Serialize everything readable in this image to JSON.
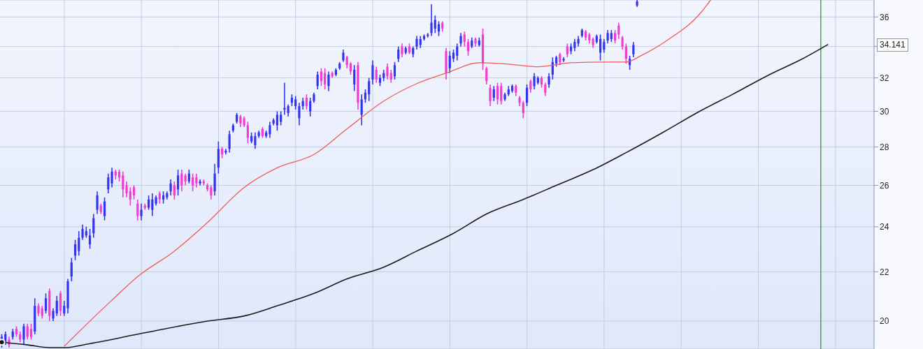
{
  "chart_data": {
    "type": "candlestick",
    "categories": [
      null,
      null,
      null,
      null,
      null,
      null,
      null,
      null,
      null,
      null,
      null,
      null,
      null,
      null,
      null,
      null,
      null,
      null,
      null,
      null,
      null,
      null,
      null,
      null,
      null,
      null,
      null,
      null,
      null,
      null,
      null,
      null,
      null,
      null,
      null,
      null,
      null,
      null,
      null,
      null,
      null,
      null,
      null,
      null,
      null,
      null,
      null,
      null,
      null,
      null,
      null,
      null,
      null,
      null,
      null,
      null,
      null,
      null,
      null,
      null,
      null,
      null,
      null,
      null,
      null,
      null,
      null,
      null,
      null,
      null,
      null,
      null,
      null,
      null,
      null,
      null,
      null,
      null,
      null,
      null,
      null,
      null,
      null,
      null,
      null,
      null,
      null,
      null,
      null,
      null,
      null,
      null,
      null,
      null,
      null,
      null,
      null,
      null,
      null,
      null,
      null,
      null,
      null,
      null,
      null,
      null,
      null,
      null,
      null,
      null,
      null,
      null,
      null,
      null,
      null,
      null,
      null,
      null,
      null,
      null,
      null,
      null,
      null,
      null,
      null,
      null,
      null,
      null,
      null,
      null,
      null,
      null,
      null,
      null,
      null,
      null,
      null,
      null,
      null,
      null,
      null,
      null,
      null,
      null,
      null,
      null,
      null,
      null,
      null,
      null,
      null,
      null,
      null,
      null,
      null,
      null,
      null,
      null,
      null,
      null,
      null,
      null,
      null,
      null,
      null,
      null,
      null,
      null,
      null,
      null,
      null,
      null,
      null,
      null,
      null,
      null,
      null,
      null,
      null,
      null,
      null,
      null,
      null,
      null,
      null,
      null,
      null,
      null,
      null,
      null,
      null,
      null,
      null,
      null,
      null,
      null,
      null,
      null,
      null,
      null,
      null,
      null,
      null,
      null,
      null,
      null,
      null,
      null,
      null,
      null,
      null,
      null,
      null,
      null,
      null,
      null,
      null,
      null,
      null,
      null,
      null,
      null,
      null,
      null,
      null,
      null,
      null,
      null,
      null,
      null,
      null,
      null,
      null,
      null,
      null,
      null,
      null,
      null
    ],
    "series": [
      {
        "ohlc": [
          [
            19.1,
            19.5,
            19.0,
            19.4
          ],
          [
            19.2,
            19.6,
            19.1,
            19.5
          ],
          [
            19.3,
            19.4,
            19.0,
            19.1
          ],
          [
            19.4,
            19.7,
            19.3,
            19.6
          ],
          [
            19.7,
            19.8,
            19.4,
            19.5
          ],
          [
            19.5,
            19.6,
            19.2,
            19.3
          ],
          [
            19.3,
            19.9,
            19.1,
            19.8
          ],
          [
            19.8,
            19.9,
            19.3,
            19.4
          ],
          [
            19.7,
            19.9,
            19.3,
            19.4
          ],
          [
            19.6,
            20.9,
            19.5,
            20.6
          ],
          [
            20.6,
            20.7,
            20.2,
            20.3
          ],
          [
            20.5,
            20.6,
            20.1,
            20.2
          ],
          [
            20.4,
            21.1,
            20.3,
            20.9
          ],
          [
            21.2,
            21.3,
            20.0,
            20.2
          ],
          [
            20.1,
            20.5,
            20.0,
            20.4
          ],
          [
            20.3,
            21.0,
            20.2,
            20.8
          ],
          [
            21.1,
            21.2,
            20.2,
            20.4
          ],
          [
            20.3,
            20.8,
            20.2,
            20.6
          ],
          [
            20.5,
            21.7,
            20.3,
            21.6
          ],
          [
            21.8,
            22.6,
            21.6,
            22.4
          ],
          [
            22.7,
            23.4,
            22.5,
            23.2
          ],
          [
            22.9,
            23.8,
            22.7,
            23.5
          ],
          [
            23.5,
            24.1,
            23.4,
            23.9
          ],
          [
            23.6,
            24.0,
            23.5,
            23.8
          ],
          [
            23.2,
            23.9,
            23.0,
            23.6
          ],
          [
            23.7,
            24.6,
            23.5,
            24.4
          ],
          [
            24.8,
            25.7,
            24.6,
            25.5
          ],
          [
            25.0,
            25.1,
            24.6,
            24.7
          ],
          [
            24.5,
            25.4,
            24.3,
            25.2
          ],
          [
            25.8,
            26.6,
            25.6,
            26.4
          ],
          [
            26.1,
            26.9,
            25.9,
            26.7
          ],
          [
            26.7,
            26.8,
            26.3,
            26.5
          ],
          [
            26.7,
            26.8,
            26.2,
            26.4
          ],
          [
            26.5,
            26.7,
            25.4,
            25.8
          ],
          [
            26.0,
            26.2,
            25.4,
            25.6
          ],
          [
            25.7,
            25.9,
            25.0,
            25.3
          ],
          [
            25.9,
            26.0,
            25.3,
            25.5
          ],
          [
            25.1,
            25.3,
            24.3,
            24.5
          ],
          [
            24.5,
            25.1,
            24.3,
            24.8
          ],
          [
            25.0,
            25.1,
            24.8,
            24.9
          ],
          [
            24.9,
            25.5,
            24.8,
            25.3
          ],
          [
            24.8,
            25.6,
            24.5,
            25.3
          ],
          [
            25.1,
            25.5,
            25.0,
            25.4
          ],
          [
            25.6,
            25.7,
            25.1,
            25.3
          ],
          [
            25.3,
            25.7,
            25.1,
            25.5
          ],
          [
            25.4,
            25.7,
            25.3,
            25.6
          ],
          [
            25.7,
            26.3,
            25.5,
            26.1
          ],
          [
            26.0,
            26.2,
            25.3,
            25.5
          ],
          [
            25.8,
            26.8,
            25.5,
            26.5
          ],
          [
            26.6,
            26.8,
            25.7,
            26.0
          ],
          [
            26.5,
            26.6,
            26.0,
            26.2
          ],
          [
            26.2,
            26.8,
            26.1,
            26.6
          ],
          [
            26.4,
            26.6,
            25.7,
            26.0
          ],
          [
            26.4,
            26.6,
            25.9,
            26.1
          ],
          [
            26.1,
            26.3,
            26.0,
            26.2
          ],
          [
            26.2,
            26.3,
            26.0,
            26.1
          ],
          [
            26.0,
            26.1,
            25.7,
            25.8
          ],
          [
            25.9,
            26.0,
            25.3,
            25.5
          ],
          [
            25.7,
            27.1,
            25.5,
            26.6
          ],
          [
            26.9,
            28.3,
            26.6,
            27.9
          ],
          [
            27.9,
            28.0,
            27.4,
            27.6
          ],
          [
            27.7,
            27.9,
            27.6,
            27.8
          ],
          [
            27.9,
            28.9,
            27.7,
            28.7
          ],
          [
            28.9,
            29.3,
            28.8,
            29.2
          ],
          [
            29.4,
            29.9,
            29.3,
            29.8
          ],
          [
            29.7,
            29.8,
            29.1,
            29.3
          ],
          [
            29.6,
            29.7,
            29.1,
            29.2
          ],
          [
            29.2,
            29.4,
            28.2,
            28.5
          ],
          [
            28.3,
            28.8,
            28.2,
            28.6
          ],
          [
            28.1,
            28.8,
            27.9,
            28.6
          ],
          [
            28.6,
            28.9,
            28.5,
            28.8
          ],
          [
            29.0,
            29.1,
            28.5,
            28.6
          ],
          [
            28.6,
            28.9,
            28.5,
            28.8
          ],
          [
            28.7,
            29.4,
            28.5,
            29.2
          ],
          [
            29.3,
            29.6,
            29.2,
            29.5
          ],
          [
            29.2,
            30.0,
            28.9,
            29.8
          ],
          [
            29.4,
            30.0,
            29.2,
            29.8
          ],
          [
            30.1,
            31.7,
            29.8,
            30.2
          ],
          [
            29.9,
            30.4,
            29.7,
            30.3
          ],
          [
            30.5,
            31.0,
            30.3,
            30.8
          ],
          [
            30.3,
            30.9,
            30.1,
            30.7
          ],
          [
            29.6,
            30.5,
            29.2,
            30.3
          ],
          [
            30.3,
            30.8,
            30.1,
            30.6
          ],
          [
            30.8,
            31.0,
            30.1,
            30.3
          ],
          [
            30.0,
            30.8,
            29.7,
            30.6
          ],
          [
            30.6,
            31.1,
            30.5,
            31.0
          ],
          [
            31.5,
            32.4,
            31.3,
            32.2
          ],
          [
            32.4,
            32.6,
            31.5,
            31.8
          ],
          [
            32.3,
            32.6,
            31.3,
            31.6
          ],
          [
            31.5,
            32.4,
            31.2,
            32.2
          ],
          [
            32.3,
            32.4,
            32.0,
            32.1
          ],
          [
            32.2,
            32.6,
            32.1,
            32.5
          ],
          [
            32.6,
            33.0,
            32.5,
            32.9
          ],
          [
            33.1,
            33.8,
            33.0,
            33.6
          ],
          [
            33.3,
            33.4,
            32.6,
            32.8
          ],
          [
            32.9,
            33.0,
            32.2,
            32.4
          ],
          [
            31.6,
            32.8,
            31.2,
            32.5
          ],
          [
            32.8,
            33.0,
            30.1,
            30.5
          ],
          [
            29.8,
            31.0,
            29.2,
            30.7
          ],
          [
            30.7,
            31.3,
            30.5,
            31.1
          ],
          [
            31.0,
            32.0,
            30.6,
            31.8
          ],
          [
            31.9,
            33.1,
            31.6,
            32.8
          ],
          [
            32.5,
            32.7,
            31.7,
            31.9
          ],
          [
            31.7,
            32.2,
            31.5,
            32.0
          ],
          [
            32.0,
            32.5,
            31.8,
            32.3
          ],
          [
            32.7,
            32.9,
            31.9,
            32.1
          ],
          [
            32.3,
            32.5,
            31.7,
            31.9
          ],
          [
            32.1,
            33.0,
            31.9,
            32.8
          ],
          [
            33.2,
            34.0,
            33.0,
            33.8
          ],
          [
            34.0,
            34.2,
            33.3,
            33.5
          ],
          [
            33.6,
            34.0,
            33.5,
            33.9
          ],
          [
            34.0,
            34.2,
            33.5,
            33.6
          ],
          [
            33.5,
            34.0,
            33.3,
            33.9
          ],
          [
            34.0,
            34.7,
            33.8,
            34.5
          ],
          [
            34.1,
            34.7,
            33.9,
            34.5
          ],
          [
            34.5,
            34.8,
            34.4,
            34.7
          ],
          [
            34.7,
            34.9,
            34.6,
            34.8
          ],
          [
            34.9,
            36.9,
            34.7,
            35.6
          ],
          [
            35.2,
            36.1,
            34.9,
            35.8
          ],
          [
            35.0,
            35.7,
            34.7,
            35.5
          ],
          [
            35.6,
            35.7,
            35.0,
            35.2
          ],
          [
            33.7,
            33.9,
            31.9,
            32.3
          ],
          [
            32.6,
            33.7,
            32.3,
            33.4
          ],
          [
            33.2,
            33.8,
            33.0,
            33.6
          ],
          [
            33.4,
            34.2,
            33.1,
            34.0
          ],
          [
            34.2,
            34.9,
            34.0,
            34.7
          ],
          [
            34.8,
            35.0,
            34.0,
            34.3
          ],
          [
            34.3,
            34.5,
            33.4,
            33.7
          ],
          [
            34.0,
            34.6,
            33.9,
            34.4
          ],
          [
            34.5,
            34.6,
            34.0,
            34.2
          ],
          [
            34.1,
            34.6,
            34.0,
            34.4
          ],
          [
            34.8,
            35.2,
            32.5,
            32.9
          ],
          [
            32.6,
            32.7,
            31.6,
            31.8
          ],
          [
            31.4,
            31.6,
            30.3,
            30.6
          ],
          [
            30.8,
            31.5,
            30.6,
            31.3
          ],
          [
            31.5,
            31.7,
            30.4,
            30.7
          ],
          [
            31.5,
            31.7,
            30.4,
            30.6
          ],
          [
            30.7,
            31.1,
            30.6,
            31.0
          ],
          [
            31.0,
            31.5,
            30.9,
            31.3
          ],
          [
            31.2,
            31.6,
            31.1,
            31.5
          ],
          [
            31.5,
            31.6,
            30.9,
            31.1
          ],
          [
            30.8,
            30.9,
            30.3,
            30.5
          ],
          [
            30.5,
            30.6,
            29.6,
            29.9
          ],
          [
            30.5,
            31.6,
            30.3,
            31.4
          ],
          [
            31.8,
            31.9,
            31.1,
            31.3
          ],
          [
            31.5,
            32.3,
            31.3,
            32.1
          ],
          [
            31.7,
            32.1,
            31.6,
            32.0
          ],
          [
            32.0,
            32.1,
            31.4,
            31.6
          ],
          [
            31.6,
            31.7,
            30.9,
            31.1
          ],
          [
            31.6,
            32.3,
            31.4,
            32.1
          ],
          [
            32.2,
            33.3,
            31.9,
            33.0
          ],
          [
            32.9,
            33.4,
            32.7,
            33.3
          ],
          [
            33.5,
            33.6,
            32.8,
            33.0
          ],
          [
            33.1,
            33.3,
            33.0,
            33.2
          ],
          [
            34.0,
            34.2,
            33.3,
            33.5
          ],
          [
            33.7,
            34.2,
            33.5,
            34.0
          ],
          [
            33.9,
            34.5,
            33.7,
            34.3
          ],
          [
            34.2,
            34.7,
            34.0,
            34.5
          ],
          [
            34.7,
            35.2,
            34.6,
            35.1
          ],
          [
            35.0,
            35.1,
            34.4,
            34.6
          ],
          [
            34.8,
            34.9,
            34.2,
            34.4
          ],
          [
            34.5,
            34.6,
            33.9,
            34.1
          ],
          [
            34.3,
            34.8,
            34.2,
            34.7
          ],
          [
            33.6,
            34.8,
            33.1,
            34.5
          ],
          [
            33.8,
            34.5,
            33.6,
            34.3
          ],
          [
            34.4,
            35.1,
            34.2,
            34.9
          ],
          [
            34.5,
            35.1,
            34.3,
            34.9
          ],
          [
            34.9,
            35.1,
            34.2,
            34.4
          ],
          [
            35.4,
            35.6,
            34.5,
            34.8
          ],
          [
            34.6,
            34.7,
            33.8,
            34.0
          ],
          [
            34.0,
            34.2,
            32.9,
            33.2
          ],
          [
            32.8,
            33.4,
            32.5,
            33.2
          ],
          [
            33.5,
            34.3,
            33.3,
            34.1
          ],
          [
            36.8,
            37.2,
            36.7,
            37.1
          ],
          null,
          null,
          null,
          null,
          null,
          null,
          null,
          null,
          null,
          null,
          null,
          null,
          null,
          null,
          null,
          null,
          null,
          null,
          null,
          null,
          null,
          null,
          null,
          null,
          null,
          null,
          null,
          null,
          null,
          null,
          null,
          null,
          null,
          null,
          null,
          null,
          null,
          null,
          null,
          null,
          null,
          null,
          null,
          null,
          null,
          null,
          null,
          null,
          null,
          null,
          null,
          null,
          null,
          null,
          null,
          null,
          null,
          null,
          null,
          null,
          null,
          null,
          null,
          null
        ],
        "colors": [
          "#3434f0",
          "#3434f0",
          "#f03ccf",
          "#3434f0",
          "#f03ccf",
          "#f03ccf",
          "#3434f0",
          "#f03ccf",
          "#f03ccf",
          "#3434f0",
          "#f03ccf",
          "#f03ccf",
          "#3434f0",
          "#f03ccf",
          "#3434f0",
          "#3434f0",
          "#f03ccf",
          "#3434f0",
          "#3434f0",
          "#3434f0",
          "#3434f0",
          "#3434f0",
          "#3434f0",
          "#3434f0",
          "#3434f0",
          "#3434f0",
          "#3434f0",
          "#f03ccf",
          "#3434f0",
          "#3434f0",
          "#3434f0",
          "#f03ccf",
          "#f03ccf",
          "#f03ccf",
          "#f03ccf",
          "#f03ccf",
          "#f03ccf",
          "#f03ccf",
          "#3434f0",
          "#f03ccf",
          "#3434f0",
          "#3434f0",
          "#3434f0",
          "#f03ccf",
          "#3434f0",
          "#3434f0",
          "#3434f0",
          "#f03ccf",
          "#3434f0",
          "#f03ccf",
          "#f03ccf",
          "#3434f0",
          "#f03ccf",
          "#f03ccf",
          "#3434f0",
          "#f03ccf",
          "#f03ccf",
          "#f03ccf",
          "#3434f0",
          "#3434f0",
          "#f03ccf",
          "#3434f0",
          "#3434f0",
          "#3434f0",
          "#3434f0",
          "#f03ccf",
          "#f03ccf",
          "#f03ccf",
          "#3434f0",
          "#3434f0",
          "#3434f0",
          "#f03ccf",
          "#3434f0",
          "#3434f0",
          "#3434f0",
          "#3434f0",
          "#3434f0",
          "#3434f0",
          "#3434f0",
          "#3434f0",
          "#3434f0",
          "#3434f0",
          "#3434f0",
          "#f03ccf",
          "#3434f0",
          "#3434f0",
          "#3434f0",
          "#f03ccf",
          "#f03ccf",
          "#3434f0",
          "#f03ccf",
          "#3434f0",
          "#3434f0",
          "#3434f0",
          "#f03ccf",
          "#f03ccf",
          "#3434f0",
          "#f03ccf",
          "#3434f0",
          "#3434f0",
          "#3434f0",
          "#3434f0",
          "#f03ccf",
          "#3434f0",
          "#3434f0",
          "#f03ccf",
          "#f03ccf",
          "#3434f0",
          "#3434f0",
          "#f03ccf",
          "#3434f0",
          "#f03ccf",
          "#3434f0",
          "#3434f0",
          "#3434f0",
          "#3434f0",
          "#3434f0",
          "#3434f0",
          "#3434f0",
          "#3434f0",
          "#f03ccf",
          "#f03ccf",
          "#3434f0",
          "#3434f0",
          "#3434f0",
          "#3434f0",
          "#f03ccf",
          "#f03ccf",
          "#3434f0",
          "#f03ccf",
          "#3434f0",
          "#f03ccf",
          "#f03ccf",
          "#f03ccf",
          "#3434f0",
          "#f03ccf",
          "#f03ccf",
          "#3434f0",
          "#3434f0",
          "#3434f0",
          "#f03ccf",
          "#f03ccf",
          "#f03ccf",
          "#3434f0",
          "#f03ccf",
          "#3434f0",
          "#3434f0",
          "#f03ccf",
          "#f03ccf",
          "#3434f0",
          "#3434f0",
          "#3434f0",
          "#f03ccf",
          "#3434f0",
          "#f03ccf",
          "#3434f0",
          "#3434f0",
          "#3434f0",
          "#3434f0",
          "#f03ccf",
          "#f03ccf",
          "#f03ccf",
          "#3434f0",
          "#3434f0",
          "#3434f0",
          "#3434f0",
          "#3434f0",
          "#f03ccf",
          "#f03ccf",
          "#f03ccf",
          "#f03ccf",
          "#3434f0",
          "#3434f0",
          "#3434f0",
          null,
          null,
          null,
          null,
          null,
          null,
          null,
          null,
          null,
          null,
          null,
          null,
          null,
          null,
          null,
          null,
          null,
          null,
          null,
          null,
          null,
          null,
          null,
          null,
          null,
          null,
          null,
          null,
          null,
          null,
          null,
          null,
          null,
          null,
          null,
          null,
          null,
          null,
          null,
          null,
          null,
          null,
          null,
          null,
          null,
          null,
          null,
          null,
          null,
          null,
          null,
          null,
          null,
          null,
          null,
          null,
          null,
          null,
          null,
          null,
          null,
          null,
          null,
          null
        ]
      },
      {
        "type": "line",
        "color": "#f05a5a",
        "values": [
          null,
          null,
          null,
          null,
          null,
          null,
          null,
          null,
          null,
          null,
          null,
          null,
          null,
          null,
          null,
          null,
          null,
          19.05,
          null,
          null,
          null,
          null,
          19.73,
          null,
          null,
          null,
          null,
          null,
          null,
          null,
          20.83,
          null,
          null,
          null,
          null,
          null,
          null,
          21.8,
          null,
          null,
          null,
          null,
          null,
          null,
          null,
          null,
          null,
          22.9,
          null,
          null,
          null,
          null,
          null,
          null,
          null,
          null,
          24.2,
          null,
          null,
          null,
          null,
          null,
          null,
          null,
          null,
          null,
          25.9,
          null,
          null,
          null,
          null,
          null,
          null,
          null,
          null,
          26.9,
          null,
          null,
          null,
          null,
          null,
          null,
          null,
          null,
          null,
          27.6,
          null,
          null,
          null,
          null,
          null,
          null,
          null,
          null,
          29.0,
          null,
          null,
          null,
          null,
          null,
          null,
          null,
          null,
          null,
          30.6,
          null,
          null,
          null,
          null,
          null,
          null,
          null,
          null,
          31.65,
          null,
          null,
          null,
          null,
          null,
          null,
          null,
          32.3,
          null,
          null,
          null,
          null,
          null,
          null,
          null,
          null,
          32.95,
          null,
          null,
          null,
          null,
          null,
          32.9,
          null,
          null,
          null,
          null,
          null,
          null,
          null,
          null,
          null,
          32.7,
          null,
          null,
          null,
          null,
          null,
          null,
          null,
          null,
          32.95,
          null,
          null,
          null,
          null,
          null,
          null,
          null,
          null,
          null,
          33.0,
          null,
          null,
          null,
          null,
          33.0,
          null,
          null,
          null,
          33.4,
          null,
          null,
          null,
          null,
          null,
          null,
          null,
          34.55,
          null,
          null,
          null,
          null,
          null,
          null,
          null,
          36.2,
          null,
          null,
          37.2,
          null,
          null,
          null,
          null,
          null,
          null,
          null,
          null,
          null,
          null,
          null,
          null,
          null,
          null,
          null,
          null,
          null,
          null,
          null,
          null,
          null,
          null,
          null,
          null,
          null,
          null,
          null,
          null,
          null,
          null,
          null,
          null,
          null,
          null,
          null,
          null,
          null,
          null,
          null,
          null,
          null,
          null,
          null,
          null
        ]
      },
      {
        "type": "line",
        "color": "#1a1a1a",
        "values": [
          19.2,
          null,
          null,
          null,
          null,
          null,
          null,
          19.1,
          null,
          null,
          null,
          null,
          null,
          19.0,
          null,
          null,
          null,
          19.0,
          null,
          null,
          null,
          null,
          null,
          null,
          19.15,
          null,
          null,
          null,
          null,
          null,
          null,
          null,
          null,
          null,
          null,
          null,
          null,
          19.5,
          null,
          null,
          null,
          null,
          null,
          null,
          null,
          null,
          null,
          null,
          null,
          null,
          null,
          null,
          null,
          null,
          null,
          null,
          20.0,
          null,
          null,
          null,
          null,
          null,
          null,
          null,
          null,
          null,
          20.2,
          null,
          null,
          null,
          null,
          null,
          null,
          null,
          null,
          20.6,
          null,
          null,
          null,
          null,
          null,
          null,
          null,
          null,
          null,
          21.1,
          null,
          null,
          null,
          null,
          null,
          null,
          null,
          null,
          21.7,
          null,
          null,
          null,
          null,
          null,
          null,
          null,
          null,
          null,
          22.2,
          null,
          null,
          null,
          null,
          null,
          null,
          null,
          null,
          22.9,
          null,
          null,
          null,
          null,
          null,
          null,
          null,
          null,
          null,
          23.7,
          null,
          null,
          null,
          null,
          null,
          null,
          null,
          null,
          24.6,
          null,
          null,
          null,
          null,
          null,
          null,
          null,
          null,
          null,
          25.3,
          null,
          null,
          null,
          null,
          null,
          null,
          null,
          null,
          26.0,
          null,
          null,
          null,
          null,
          null,
          null,
          null,
          null,
          null,
          26.8,
          null,
          null,
          null,
          null,
          null,
          null,
          null,
          null,
          27.7,
          null,
          null,
          null,
          null,
          null,
          null,
          null,
          null,
          null,
          28.8,
          null,
          null,
          null,
          null,
          null,
          null,
          null,
          null,
          null,
          30.0,
          null,
          null,
          null,
          null,
          null,
          null,
          null,
          null,
          31.0,
          null,
          null,
          null,
          null,
          null,
          null,
          null,
          null,
          null,
          32.2,
          null,
          null,
          null,
          null,
          null,
          null,
          null,
          null,
          33.2,
          null,
          null,
          null,
          null,
          null,
          null,
          34.14,
          null,
          null,
          null,
          null,
          null,
          null,
          null,
          null,
          null,
          null,
          null,
          null
        ]
      }
    ],
    "ylim": [
      18.95,
      37.2
    ],
    "yticks": [
      20,
      22,
      24,
      26,
      28,
      30,
      32,
      {
        "value": 34,
        "label": null
      },
      36
    ],
    "log": true,
    "grid": true,
    "tick_labels": "y",
    "annotations": [
      "34.141"
    ]
  }
}
